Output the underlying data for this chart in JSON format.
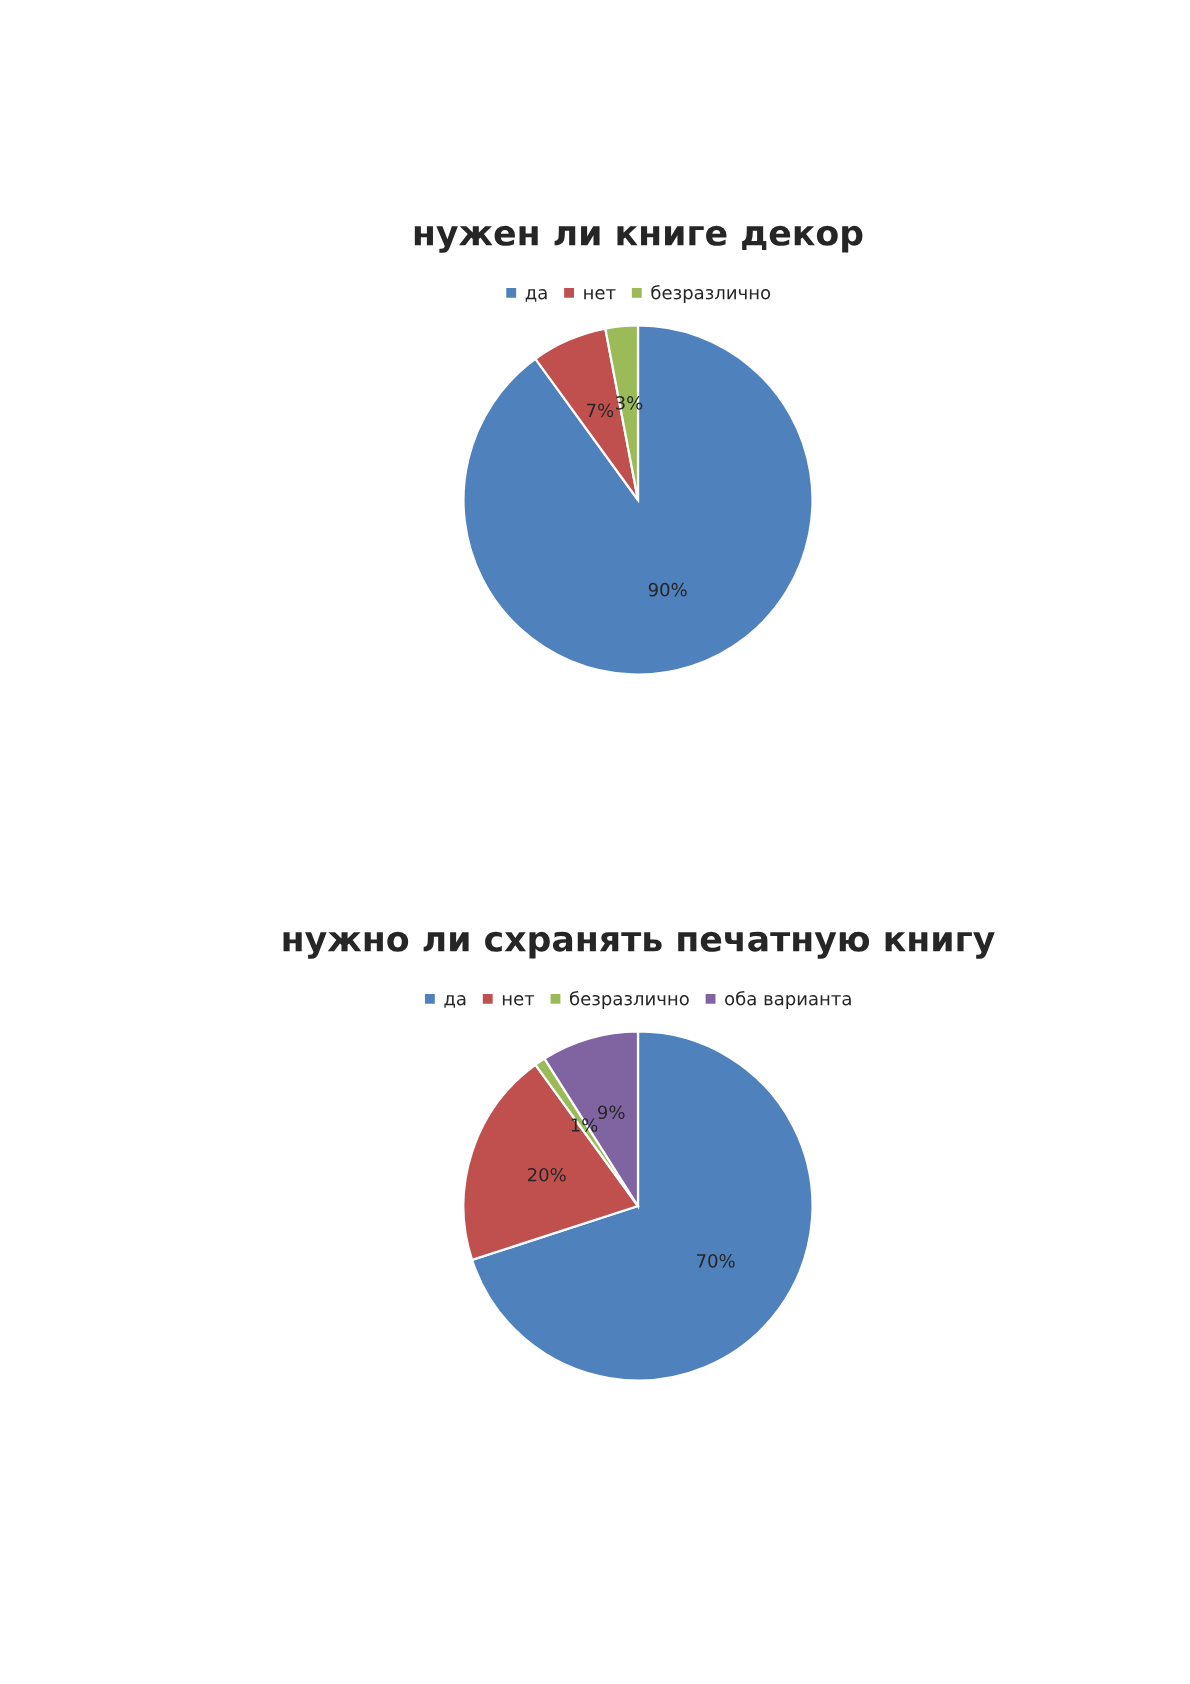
{
  "chart_data": [
    {
      "type": "pie",
      "title": "нужен ли книге декор",
      "categories": [
        "да",
        "нет",
        "безразлично"
      ],
      "values": [
        90,
        7,
        3
      ],
      "colors": [
        "#4f81bd",
        "#c0504d",
        "#9bbb59"
      ],
      "value_labels": [
        "90%",
        "7%",
        "3%"
      ],
      "legend": "top"
    },
    {
      "type": "pie",
      "title": "нужно ли схранять печатную книгу",
      "categories": [
        "да",
        "нет",
        "безразлично",
        "оба варианта"
      ],
      "values": [
        70,
        20,
        1,
        9
      ],
      "colors": [
        "#4f81bd",
        "#c0504d",
        "#9bbb59",
        "#8064a2"
      ],
      "value_labels": [
        "70%",
        "20%",
        "1%",
        "9%"
      ],
      "legend": "top"
    }
  ]
}
